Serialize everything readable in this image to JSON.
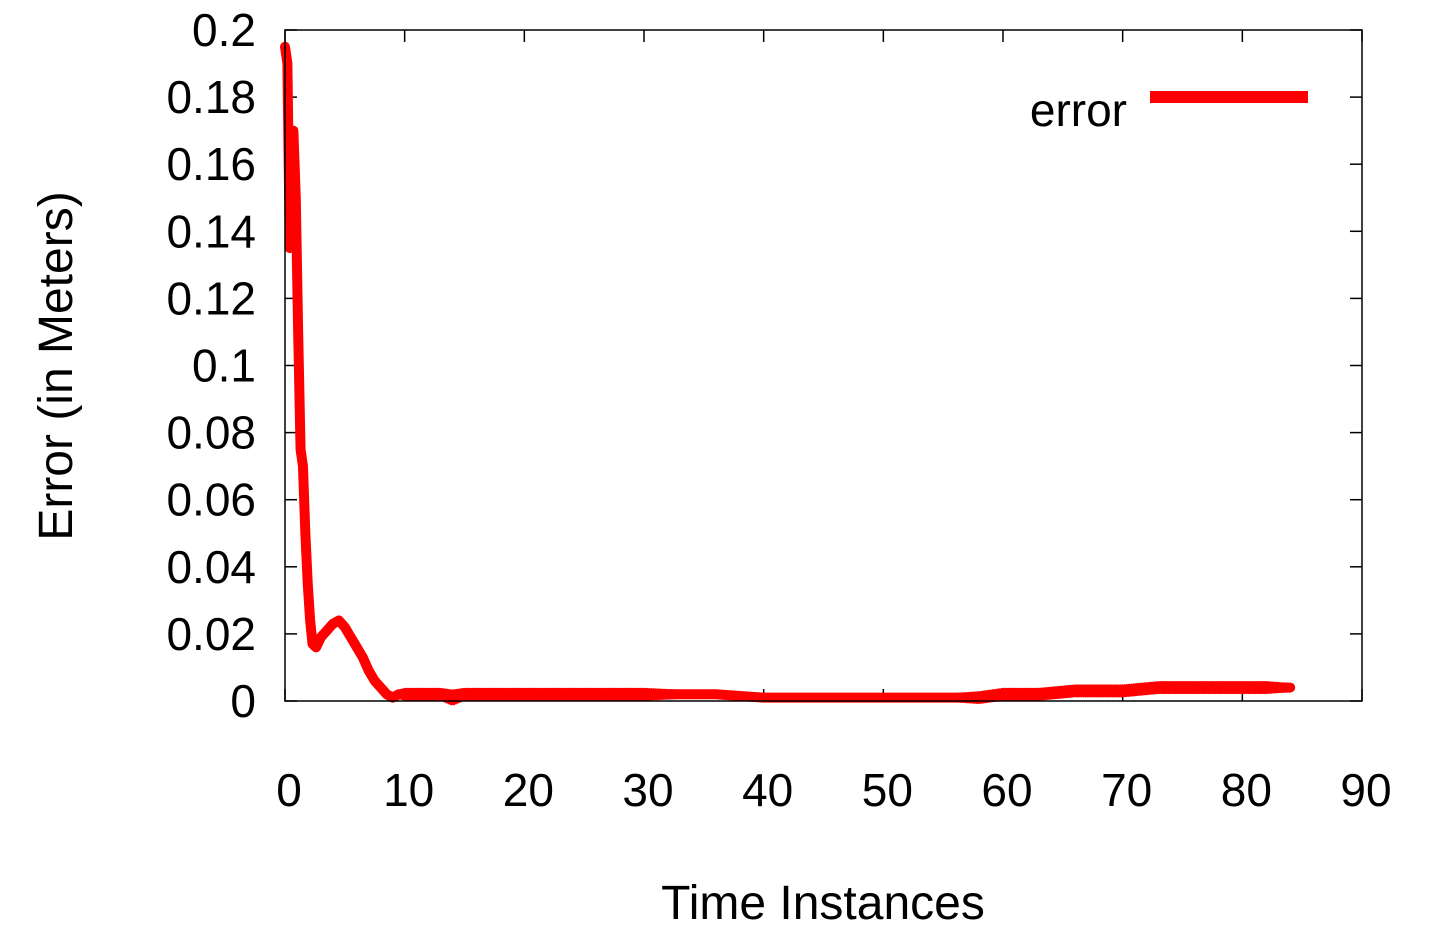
{
  "chart_data": {
    "type": "line",
    "title": "",
    "xlabel": "Time Instances",
    "ylabel": "Error (in Meters)",
    "xlim": [
      0,
      90
    ],
    "ylim": [
      0,
      0.2
    ],
    "x_ticks": [
      "0",
      "10",
      "20",
      "30",
      "40",
      "50",
      "60",
      "70",
      "80",
      "90"
    ],
    "y_ticks": [
      "0",
      "0.02",
      "0.04",
      "0.06",
      "0.08",
      "0.1",
      "0.12",
      "0.14",
      "0.16",
      "0.18",
      "0.2"
    ],
    "grid": false,
    "legend_position": "top-right",
    "series": [
      {
        "name": "error",
        "color": "#ff0000",
        "x": [
          0,
          0.2,
          0.4,
          0.5,
          0.7,
          0.9,
          1.1,
          1.3,
          1.5,
          1.7,
          1.9,
          2.1,
          2.3,
          2.6,
          3.0,
          3.5,
          4.0,
          4.5,
          5.0,
          5.5,
          6.0,
          6.5,
          7.0,
          7.5,
          8.0,
          8.5,
          9.0,
          9.5,
          10,
          11,
          12,
          13,
          14,
          15,
          17,
          20,
          23,
          26,
          30,
          33,
          36,
          40,
          43,
          46,
          50,
          53,
          56,
          58,
          60,
          63,
          66,
          70,
          73,
          76,
          80,
          82,
          84
        ],
        "y": [
          0.195,
          0.19,
          0.135,
          0.165,
          0.17,
          0.15,
          0.11,
          0.075,
          0.07,
          0.05,
          0.035,
          0.024,
          0.017,
          0.016,
          0.019,
          0.021,
          0.023,
          0.024,
          0.022,
          0.019,
          0.016,
          0.013,
          0.009,
          0.006,
          0.004,
          0.002,
          0.001,
          0.002,
          0.002,
          0.002,
          0.002,
          0.002,
          0.001,
          0.002,
          0.002,
          0.002,
          0.002,
          0.002,
          0.002,
          0.002,
          0.002,
          0.001,
          0.001,
          0.001,
          0.001,
          0.001,
          0.001,
          0.001,
          0.002,
          0.002,
          0.003,
          0.003,
          0.004,
          0.004,
          0.004,
          0.004,
          0.004
        ],
        "band": [
          0.002,
          0.003,
          0.004,
          0.004,
          0.004,
          0.004,
          0.003,
          0.003,
          0.003,
          0.002,
          0.002,
          0.002,
          0.002,
          0.002,
          0.002,
          0.002,
          0.002,
          0.002,
          0.002,
          0.002,
          0.002,
          0.002,
          0.002,
          0.002,
          0.002,
          0.002,
          0.002,
          0.002,
          0.003,
          0.003,
          0.003,
          0.003,
          0.004,
          0.003,
          0.003,
          0.003,
          0.003,
          0.003,
          0.003,
          0.002,
          0.002,
          0.002,
          0.0015,
          0.0015,
          0.0015,
          0.0015,
          0.002,
          0.003,
          0.003,
          0.003,
          0.003,
          0.003,
          0.003,
          0.003,
          0.003,
          0.003,
          0.002
        ]
      }
    ]
  }
}
